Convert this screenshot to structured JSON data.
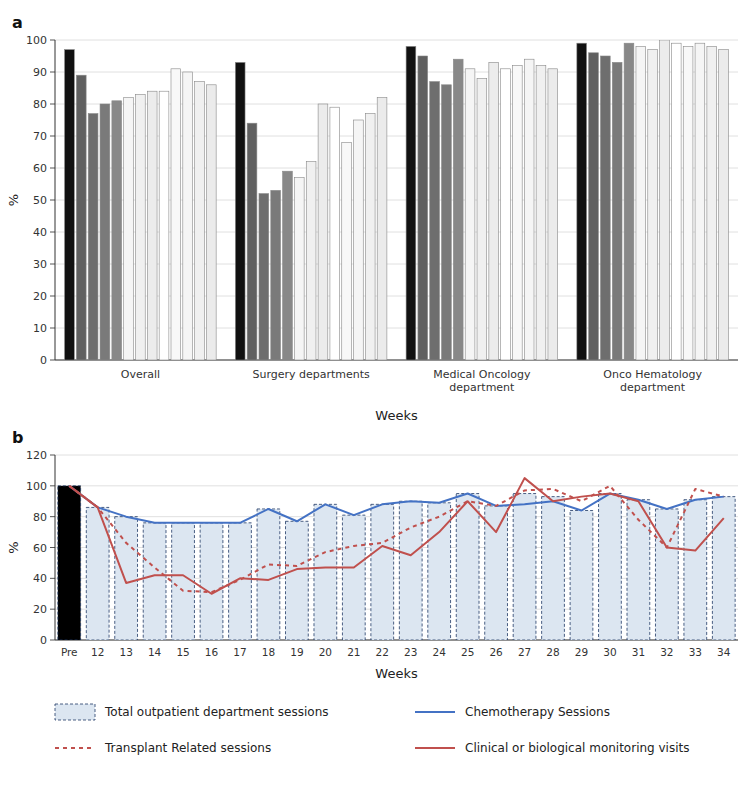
{
  "chart_data": [
    {
      "type": "bar",
      "title": "a",
      "x_label": "Weeks",
      "y_label": "%",
      "categories": [
        "Overall",
        "Surgery departments",
        "Medical Oncology\ndepartment",
        "Onco Hematology\ndepartment"
      ],
      "series": [
        {
          "color": "#111111",
          "values": [
            97,
            93,
            98,
            99
          ]
        },
        {
          "color": "#606060",
          "values": [
            89,
            74,
            95,
            96
          ]
        },
        {
          "color": "#6e6e6e",
          "values": [
            77,
            52,
            87,
            95
          ]
        },
        {
          "color": "#7a7a7a",
          "values": [
            80,
            53,
            86,
            93
          ]
        },
        {
          "color": "#888888",
          "values": [
            81,
            59,
            94,
            99
          ]
        },
        {
          "color": "#f5f5f5",
          "values": [
            82,
            57,
            91,
            98
          ]
        },
        {
          "color": "#f0f0f0",
          "values": [
            83,
            62,
            88,
            97
          ]
        },
        {
          "color": "#ececec",
          "values": [
            84,
            80,
            93,
            100
          ]
        },
        {
          "color": "#ffffff",
          "values": [
            84,
            79,
            91,
            99
          ]
        },
        {
          "color": "#f8f8f8",
          "values": [
            91,
            68,
            92,
            98
          ]
        },
        {
          "color": "#f5f5f5",
          "values": [
            90,
            75,
            94,
            99
          ]
        },
        {
          "color": "#f0f0f0",
          "values": [
            87,
            77,
            92,
            98
          ]
        },
        {
          "color": "#ebebeb",
          "values": [
            86,
            82,
            91,
            97
          ]
        }
      ],
      "ylim": [
        0,
        100
      ],
      "yticks": [
        0,
        10,
        20,
        30,
        40,
        50,
        60,
        70,
        80,
        90,
        100
      ],
      "grid": true
    },
    {
      "type": "bar",
      "title": "b",
      "x_label": "Weeks",
      "y_label": "%",
      "categories": [
        "Pre",
        "12",
        "13",
        "14",
        "15",
        "16",
        "17",
        "18",
        "19",
        "20",
        "21",
        "22",
        "23",
        "24",
        "25",
        "26",
        "27",
        "28",
        "29",
        "30",
        "31",
        "32",
        "33",
        "34"
      ],
      "series": [
        {
          "name": "Total outpatient department sessions",
          "type": "bar",
          "color": "#dce6f1",
          "colors": [
            "#000000",
            "#dce6f1",
            "#dce6f1",
            "#dce6f1",
            "#dce6f1",
            "#dce6f1",
            "#dce6f1",
            "#dce6f1",
            "#dce6f1",
            "#dce6f1",
            "#dce6f1",
            "#dce6f1",
            "#dce6f1",
            "#dce6f1",
            "#dce6f1",
            "#dce6f1",
            "#dce6f1",
            "#dce6f1",
            "#dce6f1",
            "#dce6f1",
            "#dce6f1",
            "#dce6f1",
            "#dce6f1",
            "#dce6f1"
          ],
          "values": [
            100,
            86,
            80,
            76,
            76,
            76,
            76,
            85,
            77,
            88,
            81,
            88,
            90,
            89,
            95,
            87,
            95,
            93,
            84,
            95,
            91,
            85,
            91,
            93
          ]
        },
        {
          "name": "Chemotherapy Sessions",
          "type": "line",
          "color": "#4472c4",
          "line_style": "solid",
          "values": [
            100,
            86,
            80,
            76,
            76,
            76,
            76,
            85,
            77,
            88,
            81,
            88,
            90,
            89,
            95,
            87,
            88,
            90,
            84,
            95,
            91,
            85,
            91,
            93
          ]
        },
        {
          "name": "Transplant Related sessions",
          "type": "line",
          "color": "#c0504d",
          "line_style": "dashed",
          "values": [
            100,
            86,
            63,
            47,
            32,
            31,
            39,
            49,
            48,
            57,
            61,
            63,
            73,
            80,
            90,
            87,
            97,
            98,
            90,
            100,
            78,
            60,
            98,
            93
          ]
        },
        {
          "name": "Clinical or biological monitoring visits",
          "type": "line",
          "color": "#c0504d",
          "line_style": "solid",
          "values": [
            100,
            86,
            37,
            42,
            42,
            30,
            40,
            39,
            46,
            47,
            47,
            61,
            55,
            70,
            90,
            70,
            105,
            90,
            93,
            95,
            90,
            60,
            58,
            79
          ]
        }
      ],
      "ylim": [
        0,
        120
      ],
      "yticks": [
        0,
        20,
        40,
        60,
        80,
        100,
        120
      ],
      "grid": true,
      "legend": "bottom"
    }
  ]
}
